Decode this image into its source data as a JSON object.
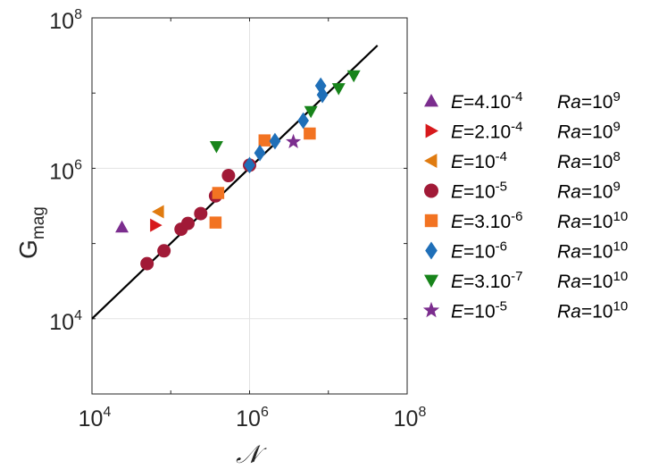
{
  "chart_data": {
    "type": "scatter",
    "x_scale": "log",
    "y_scale": "log",
    "xlim": [
      10000,
      100000000
    ],
    "ylim": [
      1000,
      100000000
    ],
    "grid": true,
    "xlabel": "𝒩",
    "ylabel": {
      "main": "G",
      "sub": "mag"
    },
    "x_ticks": [
      {
        "value": 10000,
        "base": "10",
        "exp": "4"
      },
      {
        "value": 1000000,
        "base": "10",
        "exp": "6"
      },
      {
        "value": 100000000,
        "base": "10",
        "exp": "8"
      }
    ],
    "y_ticks": [
      {
        "value": 10000,
        "base": "10",
        "exp": "4"
      },
      {
        "value": 1000000,
        "base": "10",
        "exp": "6"
      },
      {
        "value": 100000000,
        "base": "10",
        "exp": "8"
      }
    ],
    "fit_line": {
      "x": [
        10000,
        42000000
      ],
      "y": [
        10000,
        43000000
      ],
      "color": "#000000"
    },
    "legend_position": "right",
    "series": [
      {
        "name": "E=4.10-4 Ra=10^9",
        "legend": {
          "e_base": "4.10",
          "e_exp": "-4",
          "ra_exp": "9"
        },
        "marker": "triangle-up",
        "color": "#7B2D8E",
        "points": [
          {
            "x": 24000,
            "y": 165000
          }
        ]
      },
      {
        "name": "E=2.10-4 Ra=10^9",
        "legend": {
          "e_base": "2.10",
          "e_exp": "-4",
          "ra_exp": "9"
        },
        "marker": "triangle-right",
        "color": "#D7191C",
        "points": [
          {
            "x": 64000,
            "y": 175000
          }
        ]
      },
      {
        "name": "E=10-4 Ra=10^8",
        "legend": {
          "e_base": "10",
          "e_exp": "-4",
          "ra_exp": "8"
        },
        "marker": "triangle-left",
        "color": "#E07B10",
        "points": [
          {
            "x": 70000,
            "y": 265000
          }
        ]
      },
      {
        "name": "E=10-5 Ra=10^9",
        "legend": {
          "e_base": "10",
          "e_exp": "-5",
          "ra_exp": "9"
        },
        "marker": "circle",
        "color": "#A11A37",
        "points": [
          {
            "x": 50000,
            "y": 54000
          },
          {
            "x": 82000,
            "y": 80000
          },
          {
            "x": 135000,
            "y": 155000
          },
          {
            "x": 165000,
            "y": 185000
          },
          {
            "x": 240000,
            "y": 250000
          },
          {
            "x": 370000,
            "y": 430000
          },
          {
            "x": 540000,
            "y": 800000
          },
          {
            "x": 1000000,
            "y": 1100000
          }
        ]
      },
      {
        "name": "E=3.10-6 Ra=10^10",
        "legend": {
          "e_base": "3.10",
          "e_exp": "-6",
          "ra_exp": "10"
        },
        "marker": "square",
        "color": "#F27322",
        "points": [
          {
            "x": 370000,
            "y": 190000
          },
          {
            "x": 400000,
            "y": 470000
          },
          {
            "x": 1550000,
            "y": 2350000
          },
          {
            "x": 5800000,
            "y": 2900000
          }
        ]
      },
      {
        "name": "E=10-6 Ra=10^10",
        "legend": {
          "e_base": "10",
          "e_exp": "-6",
          "ra_exp": "10"
        },
        "marker": "diamond",
        "color": "#1F6FB8",
        "points": [
          {
            "x": 1000000,
            "y": 1100000
          },
          {
            "x": 1350000,
            "y": 1600000
          },
          {
            "x": 2100000,
            "y": 2300000
          },
          {
            "x": 4800000,
            "y": 4300000
          },
          {
            "x": 8400000,
            "y": 9500000
          },
          {
            "x": 8000000,
            "y": 12500000
          }
        ]
      },
      {
        "name": "E=3.10-7 Ra=10^10",
        "legend": {
          "e_base": "3.10",
          "e_exp": "-7",
          "ra_exp": "10"
        },
        "marker": "triangle-down",
        "color": "#17841A",
        "points": [
          {
            "x": 380000,
            "y": 1950000
          },
          {
            "x": 6000000,
            "y": 5700000
          },
          {
            "x": 13500000,
            "y": 11500000
          },
          {
            "x": 21000000,
            "y": 17000000
          }
        ]
      },
      {
        "name": "E=10-5 Ra=10^10",
        "legend": {
          "e_base": "10",
          "e_exp": "-5",
          "ra_exp": "10"
        },
        "marker": "star",
        "color": "#7B2D8E",
        "points": [
          {
            "x": 3600000,
            "y": 2250000
          }
        ]
      }
    ]
  }
}
